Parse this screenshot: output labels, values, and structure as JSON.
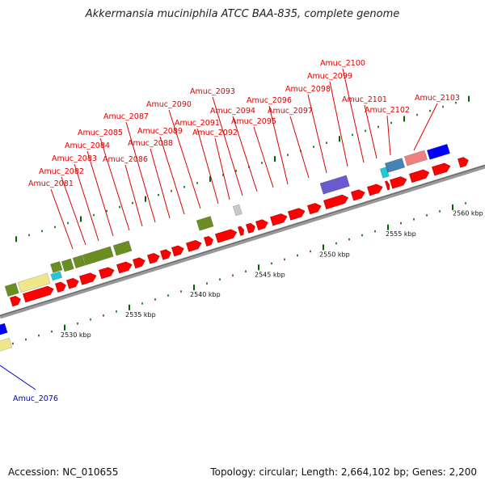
{
  "title": "Akkermansia muciniphila ATCC BAA-835, complete genome",
  "footer": {
    "accession": "Accession: NC_010655",
    "topology": "Topology: circular; Length: 2,664,102 bp; Genes: 2,200"
  },
  "colors": {
    "cds": "#ff0000",
    "label_red": "#e00000",
    "label_blue": "#0000c8",
    "olive": "#6b8e23",
    "khaki": "#f0e68c",
    "cyan": "#22c8d8",
    "slate_purple": "#6a5acd",
    "steel_blue": "#4682b4",
    "salmon": "#f08080",
    "blue": "#0000ff",
    "light_gray": "#c8c8c8",
    "tick_green": "#006400",
    "backbone": "#888888"
  },
  "scale": {
    "unit": "kbp",
    "labels": [
      "2530 kbp",
      "2535 kbp",
      "2540 kbp",
      "2545 kbp",
      "2550 kbp",
      "2555 kbp",
      "2560 kbp"
    ]
  },
  "gene_labels": [
    {
      "text": "Amuc_2081"
    },
    {
      "text": "Amuc_2082"
    },
    {
      "text": "Amuc_2083"
    },
    {
      "text": "Amuc_2084"
    },
    {
      "text": "Amuc_2085"
    },
    {
      "text": "Amuc_2086"
    },
    {
      "text": "Amuc_2087"
    },
    {
      "text": "Amuc_2088"
    },
    {
      "text": "Amuc_2089"
    },
    {
      "text": "Amuc_2090"
    },
    {
      "text": "Amuc_2091"
    },
    {
      "text": "Amuc_2092"
    },
    {
      "text": "Amuc_2093"
    },
    {
      "text": "Amuc_2094"
    },
    {
      "text": "Amuc_2095"
    },
    {
      "text": "Amuc_2096"
    },
    {
      "text": "Amuc_2097"
    },
    {
      "text": "Amuc_2098"
    },
    {
      "text": "Amuc_2099"
    },
    {
      "text": "Amuc_2100"
    },
    {
      "text": "Amuc_2101"
    },
    {
      "text": "Amuc_2102"
    },
    {
      "text": "Amuc_2103"
    },
    {
      "text": "Amuc_2076",
      "color": "blue"
    }
  ]
}
